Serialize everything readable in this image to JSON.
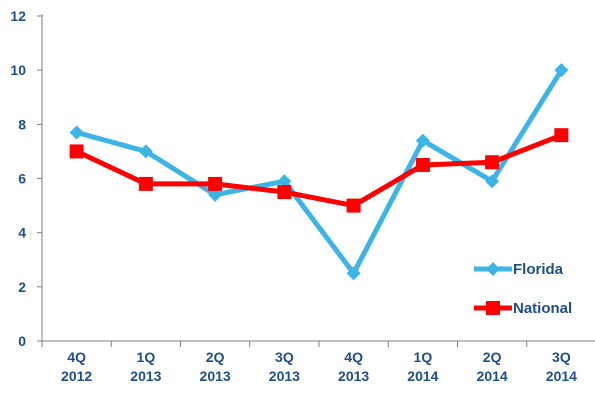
{
  "chart_data": {
    "type": "line",
    "categories": [
      [
        "4Q",
        "2012"
      ],
      [
        "1Q",
        "2013"
      ],
      [
        "2Q",
        "2013"
      ],
      [
        "3Q",
        "2013"
      ],
      [
        "4Q",
        "2013"
      ],
      [
        "1Q",
        "2014"
      ],
      [
        "2Q",
        "2014"
      ],
      [
        "3Q",
        "2014"
      ]
    ],
    "series": [
      {
        "name": "Florida",
        "color": "#3cb4e5",
        "marker": "diamond",
        "values": [
          7.7,
          7.0,
          5.4,
          5.9,
          2.5,
          7.4,
          5.9,
          10.0
        ]
      },
      {
        "name": "National",
        "color": "#ff0000",
        "marker": "square",
        "values": [
          7.0,
          5.8,
          5.8,
          5.5,
          5.0,
          6.5,
          6.6,
          7.6
        ]
      }
    ],
    "ylim": [
      0,
      12
    ],
    "yticks": [
      0,
      2,
      4,
      6,
      8,
      10,
      12
    ],
    "grid": false,
    "legend": "bottom-right"
  }
}
